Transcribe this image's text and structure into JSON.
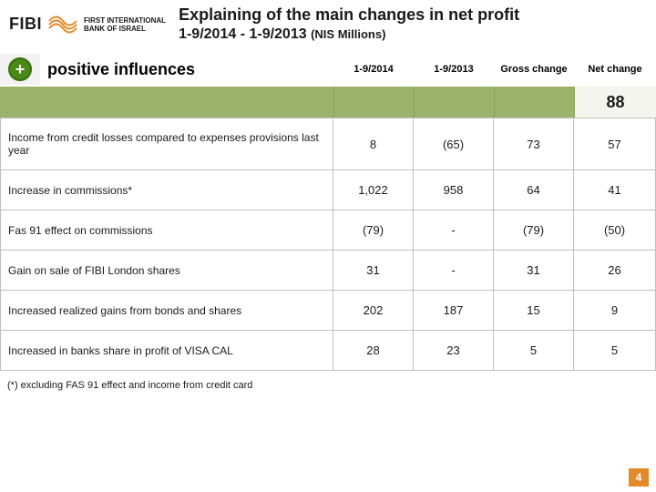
{
  "brand": {
    "logo_text": "FIBI",
    "subline1": "FIRST INTERNATIONAL",
    "subline2": "BANK OF ISRAEL",
    "logo_color": "#e38b2a"
  },
  "title": {
    "line1": "Explaining  of the main changes in net profit",
    "line2_a": "1-9/2014  -  1-9/2013",
    "line2_b": "(NIS Millions)"
  },
  "section": {
    "label": "positive influences"
  },
  "columns": [
    "1-9/2014",
    "1-9/2013",
    "Gross change",
    "Net change"
  ],
  "summary_net": "88",
  "rows": [
    {
      "label": "Income from credit losses compared to expenses provisions last year",
      "v": [
        "8",
        "(65)",
        "73",
        "57"
      ]
    },
    {
      "label": "Increase in commissions*",
      "v": [
        "1,022",
        "958",
        "64",
        "41"
      ]
    },
    {
      "label": "Fas 91 effect on commissions",
      "v": [
        "(79)",
        "-",
        "(79)",
        "(50)"
      ]
    },
    {
      "label": "Gain on sale of FIBI London shares",
      "v": [
        "31",
        "-",
        "31",
        "26"
      ]
    },
    {
      "label": "Increased realized gains from bonds and shares",
      "v": [
        "202",
        "187",
        "15",
        "9"
      ]
    },
    {
      "label": "Increased in banks share in profit of VISA CAL",
      "v": [
        "28",
        "23",
        "5",
        "5"
      ]
    }
  ],
  "footnote": "(*) excluding FAS 91 effect and income from credit card",
  "page_number": "4",
  "colors": {
    "green_band": "#9bb36a",
    "plus_badge": "#4a8a17",
    "page_badge": "#e38b2a",
    "border": "#bfbfbf"
  }
}
